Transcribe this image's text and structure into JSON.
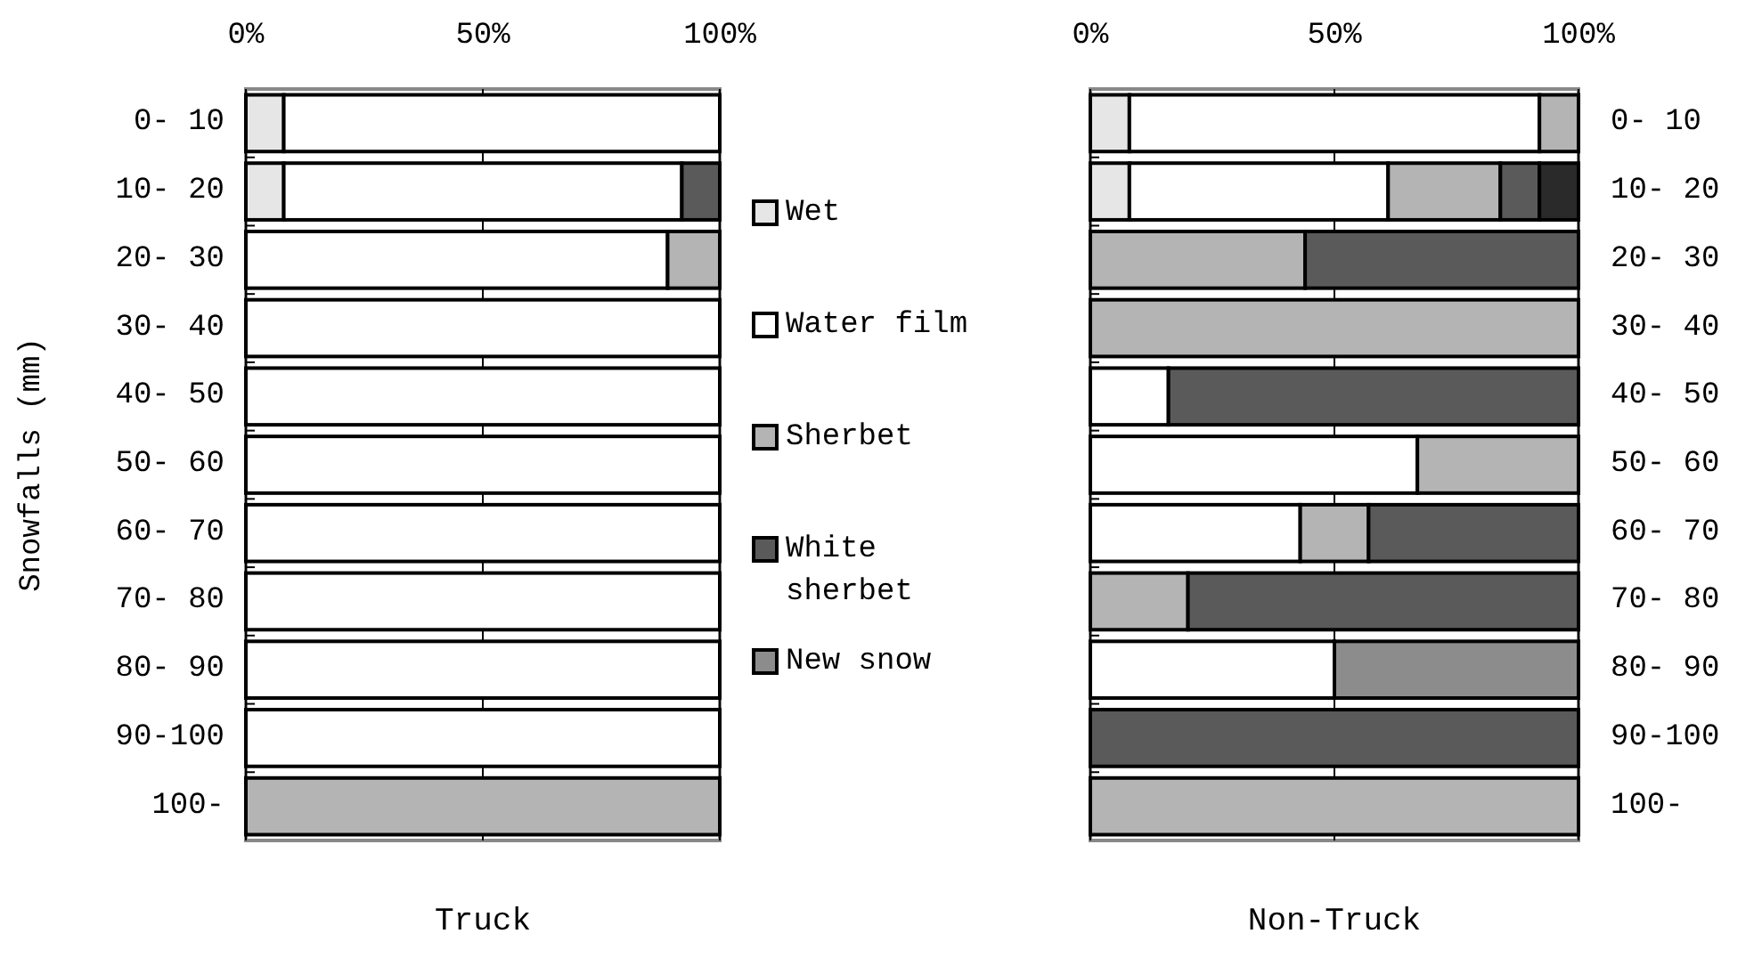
{
  "chart_data": [
    {
      "type": "bar",
      "orientation": "horizontal",
      "stacked": true,
      "xlabel": "Truck",
      "ylabel": "Snowfalls (mm)",
      "categories": [
        "0- 10",
        "10- 20",
        "20- 30",
        "30- 40",
        "40- 50",
        "50- 60",
        "60- 70",
        "70- 80",
        "80- 90",
        "90-100",
        "100-"
      ],
      "series": [
        {
          "name": "Wet",
          "color": "#e6e6e6",
          "values": [
            8,
            8,
            0,
            0,
            0,
            0,
            0,
            0,
            0,
            0,
            0
          ]
        },
        {
          "name": "Water film",
          "color": "#ffffff",
          "values": [
            92,
            84,
            89,
            100,
            100,
            100,
            100,
            100,
            100,
            100,
            0
          ]
        },
        {
          "name": "Sherbet",
          "color": "#b4b4b4",
          "values": [
            0,
            0,
            11,
            0,
            0,
            0,
            0,
            0,
            0,
            0,
            100
          ]
        },
        {
          "name": "White sherbet",
          "color": "#5a5a5a",
          "values": [
            0,
            8,
            0,
            0,
            0,
            0,
            0,
            0,
            0,
            0,
            0
          ]
        },
        {
          "name": "New snow",
          "color": "#8c8c8c",
          "values": [
            0,
            0,
            0,
            0,
            0,
            0,
            0,
            0,
            0,
            0,
            0
          ]
        }
      ],
      "xlim": [
        0,
        100
      ],
      "xticks": [
        {
          "value": 0,
          "label": "0%"
        },
        {
          "value": 50,
          "label": "50%"
        },
        {
          "value": 100,
          "label": "100%"
        }
      ],
      "grid": "x",
      "legend": "right"
    },
    {
      "type": "bar",
      "orientation": "horizontal",
      "stacked": true,
      "xlabel": "Non-Truck",
      "categories": [
        "0- 10",
        "10- 20",
        "20- 30",
        "30- 40",
        "40- 50",
        "50- 60",
        "60- 70",
        "70- 80",
        "80- 90",
        "90-100",
        "100-"
      ],
      "series": [
        {
          "color": "#e6e6e6",
          "values": [
            8,
            8,
            0,
            0,
            0,
            0,
            0,
            0,
            0,
            0,
            0
          ]
        },
        {
          "color": "#ffffff",
          "values": [
            84,
            53,
            0,
            0,
            16,
            67,
            43,
            0,
            50,
            0,
            0
          ]
        },
        {
          "color": "#b4b4b4",
          "values": [
            8,
            23,
            44,
            100,
            0,
            33,
            14,
            20,
            0,
            0,
            100
          ]
        },
        {
          "color": "#5a5a5a",
          "values": [
            0,
            8,
            56,
            0,
            84,
            0,
            43,
            80,
            0,
            100,
            0
          ]
        },
        {
          "color": "#8c8c8c",
          "values": [
            0,
            0,
            0,
            0,
            0,
            0,
            0,
            0,
            50,
            0,
            0
          ]
        },
        {
          "color": "#2a2a2a",
          "values": [
            0,
            8,
            0,
            0,
            0,
            0,
            0,
            0,
            0,
            0,
            0
          ]
        }
      ],
      "xlim": [
        0,
        100
      ],
      "xticks": [
        {
          "value": 0,
          "label": "0%"
        },
        {
          "value": 50,
          "label": "50%"
        },
        {
          "value": 100,
          "label": "100%"
        }
      ],
      "grid": "x"
    }
  ]
}
